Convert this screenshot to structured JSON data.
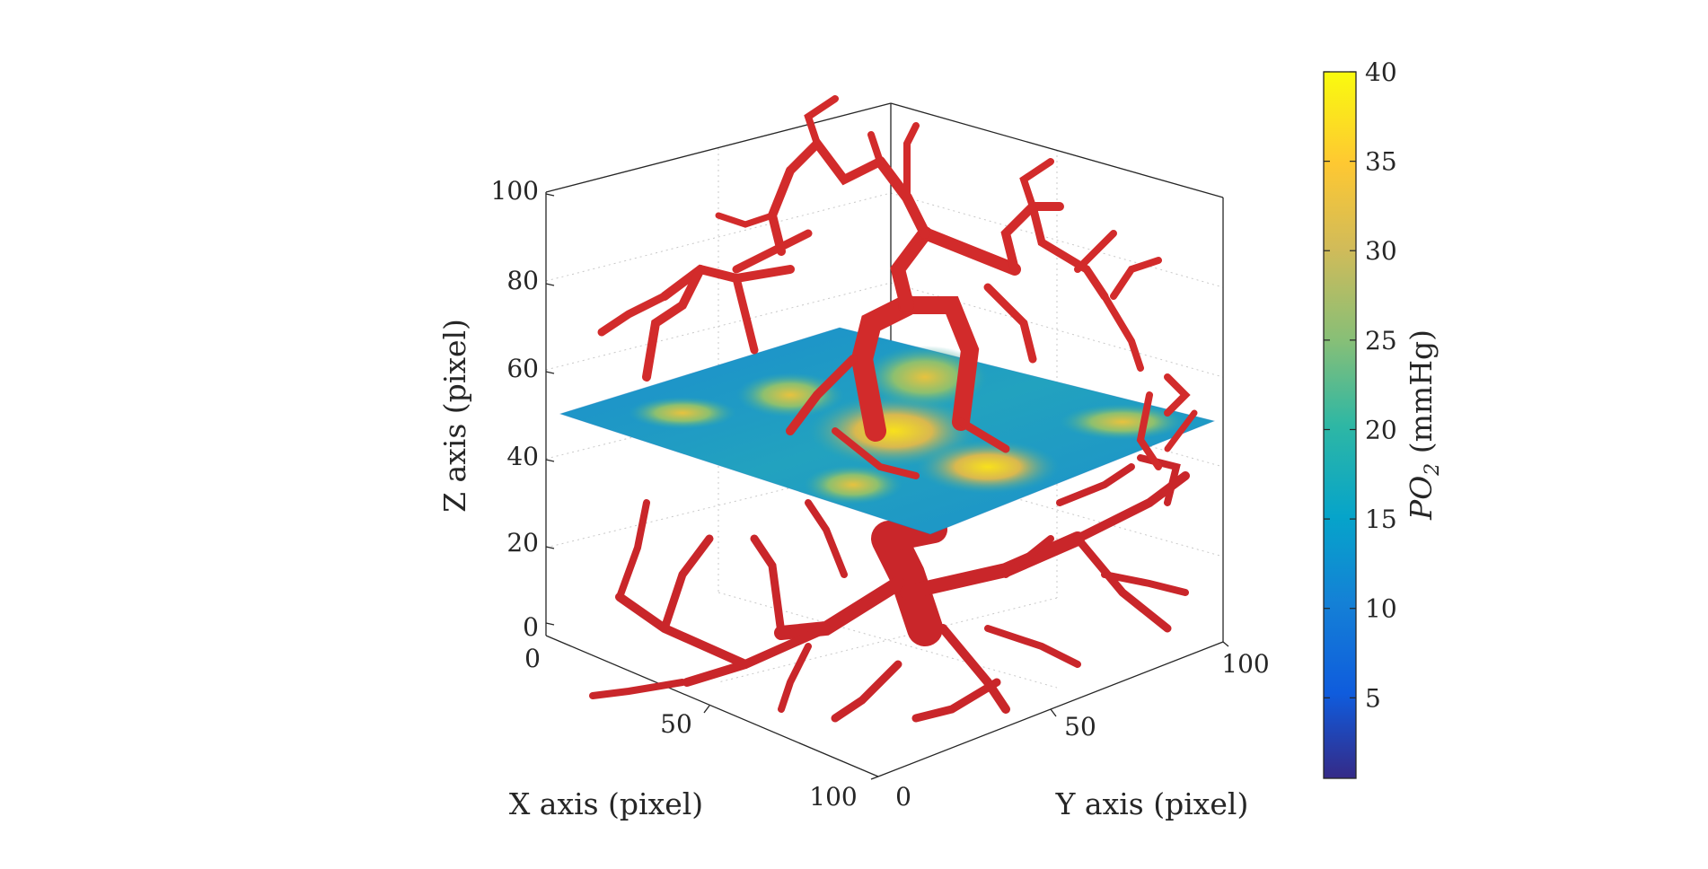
{
  "chart_data": {
    "type": "surface3d",
    "xlabel": "X axis (pixel)",
    "ylabel": "Y axis (pixel)",
    "zlabel": "Z axis (pixel)",
    "xlim": [
      0,
      100
    ],
    "ylim": [
      0,
      100
    ],
    "zlim": [
      0,
      100
    ],
    "x_ticks": [
      "0",
      "50",
      "100"
    ],
    "y_ticks": [
      "0",
      "50",
      "100"
    ],
    "z_ticks": [
      "0",
      "20",
      "40",
      "60",
      "80",
      "100"
    ],
    "grid": true,
    "slice_plane_z": 50,
    "vessel_color": "#d62a2a",
    "colorbar": {
      "label_main": "PO",
      "label_sub": "2",
      "label_unit": " (mmHg)",
      "range": [
        0.5,
        40
      ],
      "ticks": [
        "5",
        "10",
        "15",
        "20",
        "25",
        "30",
        "35",
        "40"
      ],
      "colormap": "parula"
    }
  }
}
